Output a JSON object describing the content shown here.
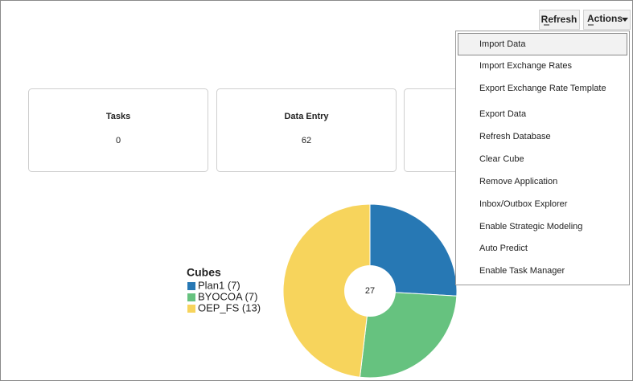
{
  "toolbar": {
    "refresh": "Refresh",
    "actions": "Actions"
  },
  "cards": [
    {
      "title": "Tasks",
      "value": 0
    },
    {
      "title": "Data Entry",
      "value": 62
    }
  ],
  "menu": {
    "items": [
      "Import Data",
      "Import Exchange Rates",
      "Export Exchange Rate Template",
      "Export Data",
      "Refresh Database",
      "Clear Cube",
      "Remove Application",
      "Inbox/Outbox Explorer",
      "Enable Strategic Modeling",
      "Auto Predict",
      "Enable Task Manager"
    ]
  },
  "chart_data": {
    "type": "donut",
    "legend_title": "Cubes",
    "categories": [
      "Plan1 (7)",
      "BYOCOA (7)",
      "OEP_FS (13)"
    ],
    "values": [
      7,
      7,
      13
    ],
    "colors": [
      "#2778b4",
      "#66c27f",
      "#f7d45c"
    ],
    "center_label": 27
  }
}
